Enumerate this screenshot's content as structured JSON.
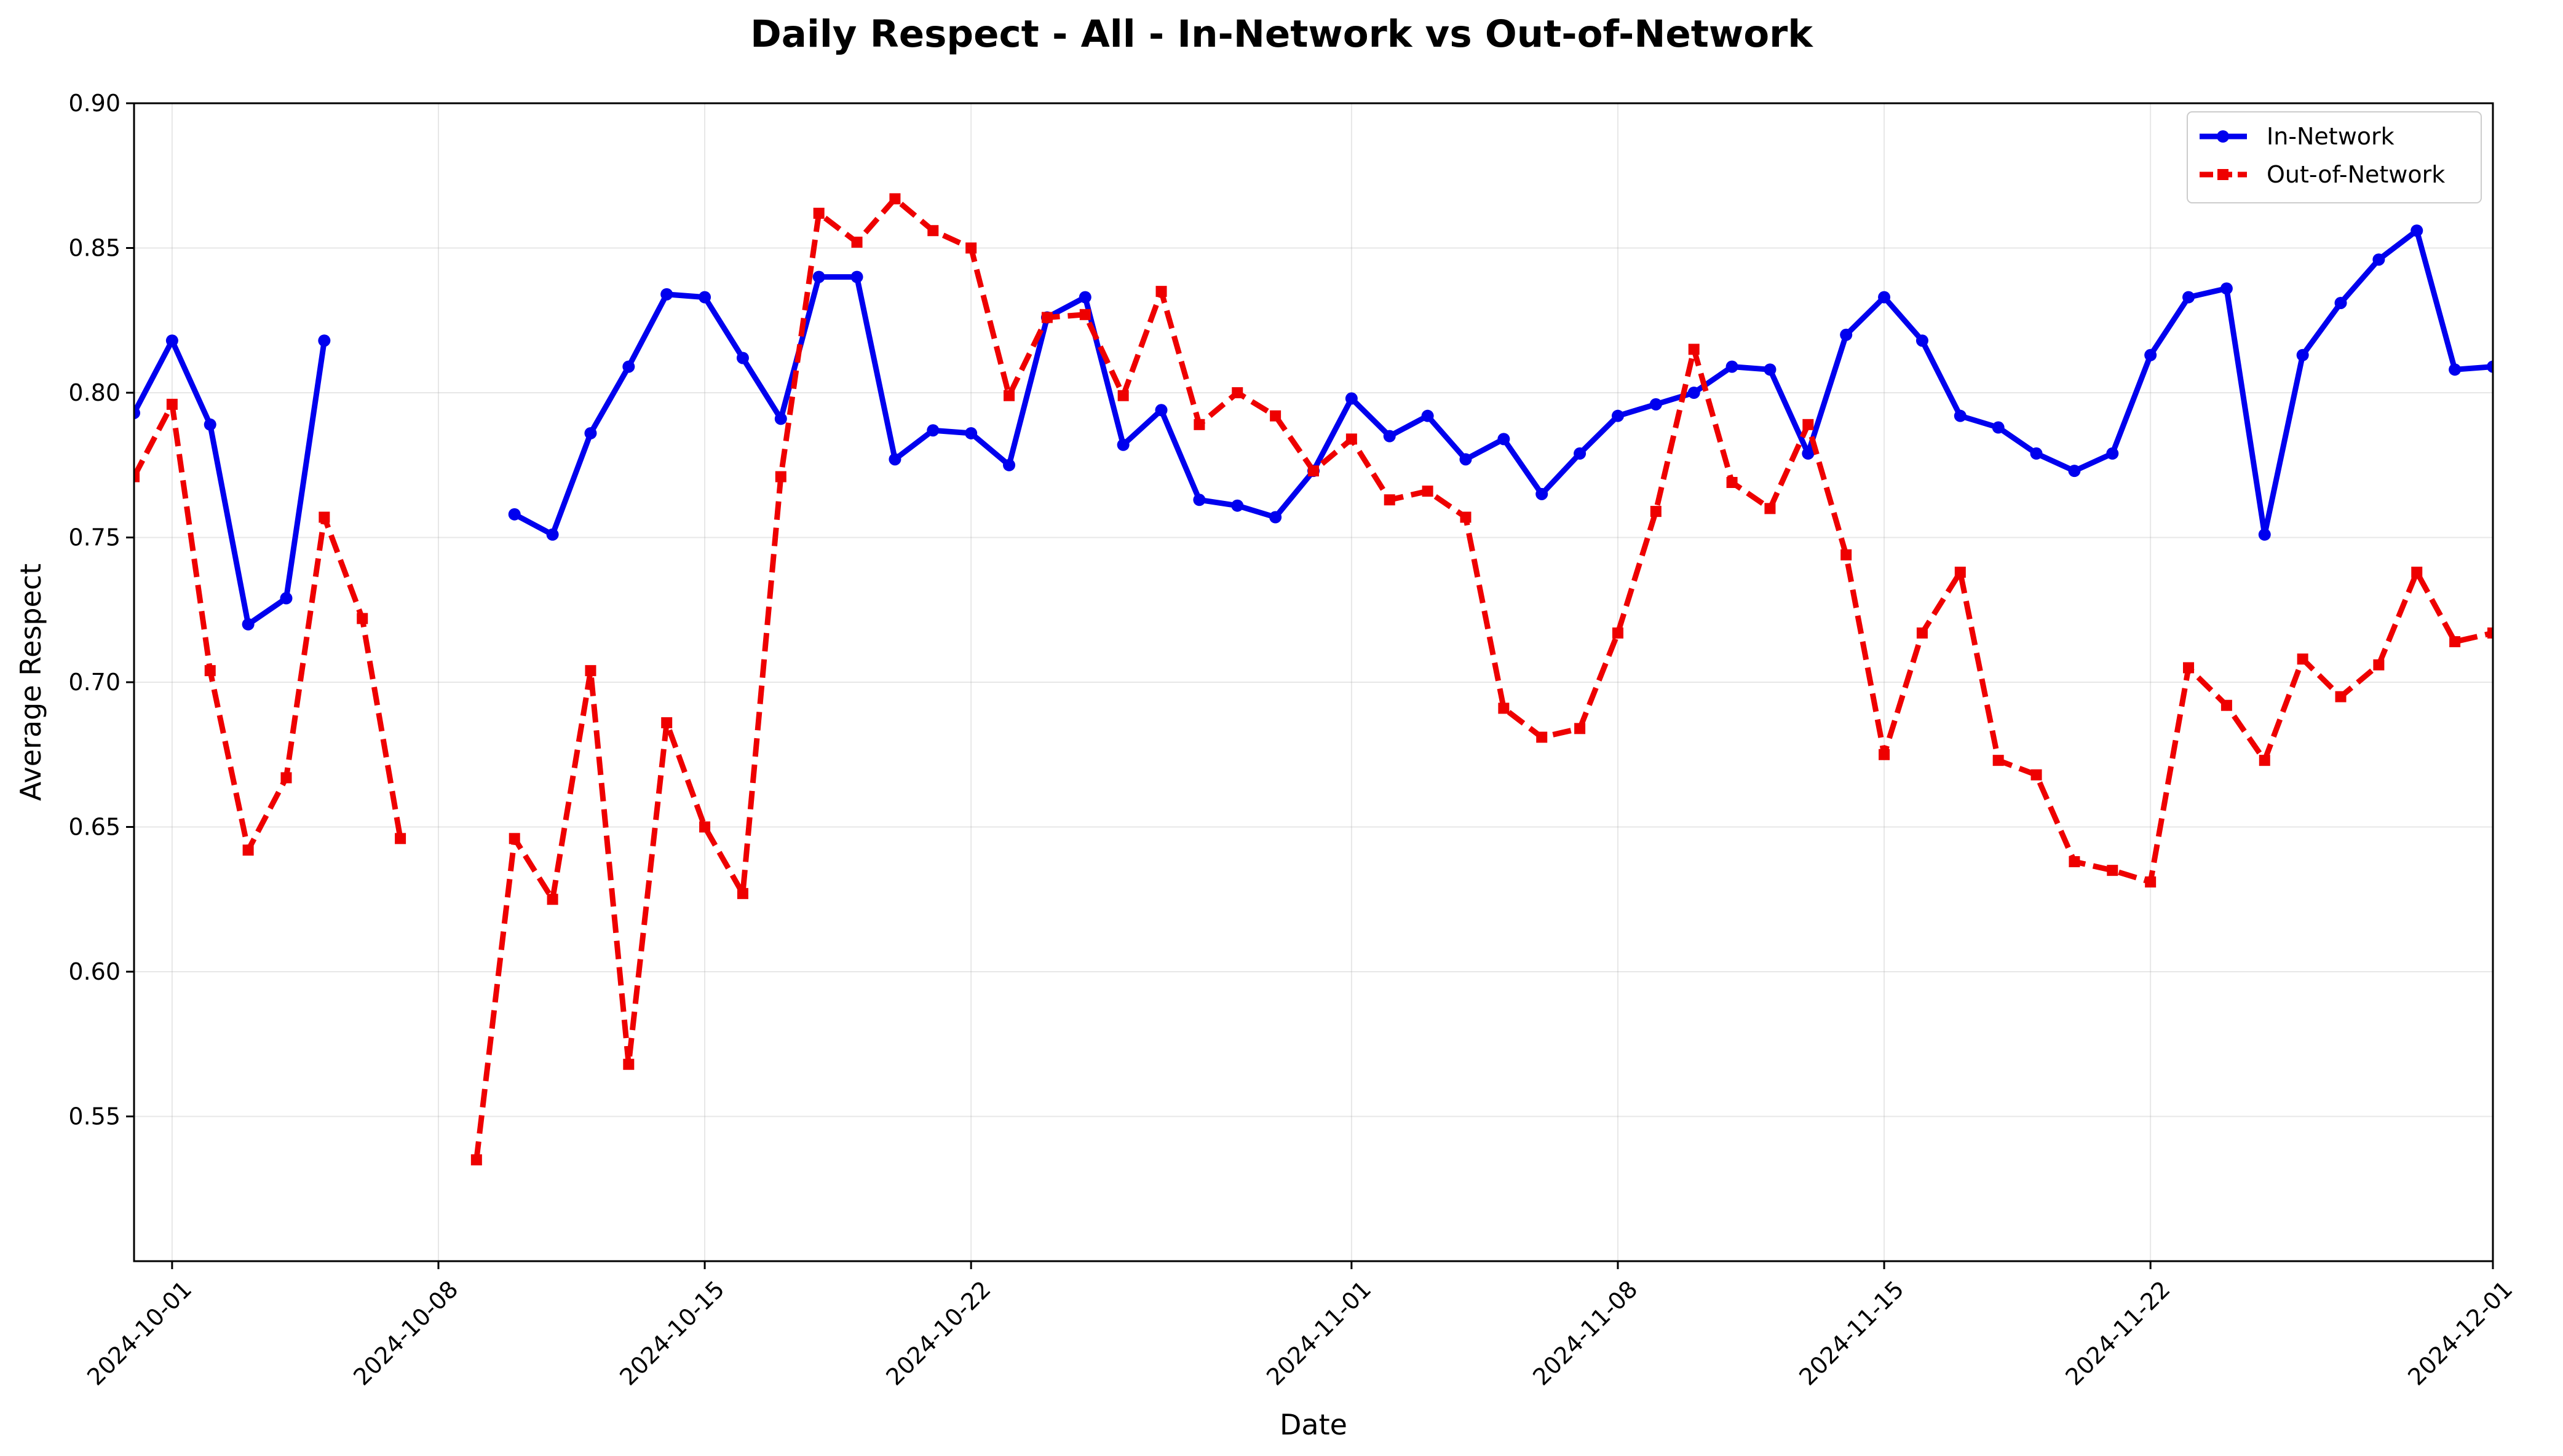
{
  "chart_data": {
    "type": "line",
    "title": "Daily Respect - All - In-Network vs Out-of-Network",
    "xlabel": "Date",
    "ylabel": "Average Respect",
    "x_axis_type": "date",
    "xlim": [
      "2024-09-30",
      "2024-12-01"
    ],
    "ylim": [
      0.5,
      0.9
    ],
    "y_ticks": [
      "0.55",
      "0.60",
      "0.65",
      "0.70",
      "0.75",
      "0.80",
      "0.85",
      "0.90"
    ],
    "x_ticks": [
      "2024-10-01",
      "2024-10-08",
      "2024-10-15",
      "2024-10-22",
      "2024-11-01",
      "2024-11-08",
      "2024-11-15",
      "2024-11-22",
      "2024-12-01"
    ],
    "grid": true,
    "legend_position": "top-right",
    "x": [
      "2024-09-30",
      "2024-10-01",
      "2024-10-02",
      "2024-10-03",
      "2024-10-04",
      "2024-10-05",
      "2024-10-06",
      "2024-10-07",
      "2024-10-08",
      "2024-10-09",
      "2024-10-10",
      "2024-10-11",
      "2024-10-12",
      "2024-10-13",
      "2024-10-14",
      "2024-10-15",
      "2024-10-16",
      "2024-10-17",
      "2024-10-18",
      "2024-10-19",
      "2024-10-20",
      "2024-10-21",
      "2024-10-22",
      "2024-10-23",
      "2024-10-24",
      "2024-10-25",
      "2024-10-26",
      "2024-10-27",
      "2024-10-28",
      "2024-10-29",
      "2024-10-30",
      "2024-10-31",
      "2024-11-01",
      "2024-11-02",
      "2024-11-03",
      "2024-11-04",
      "2024-11-05",
      "2024-11-06",
      "2024-11-07",
      "2024-11-08",
      "2024-11-09",
      "2024-11-10",
      "2024-11-11",
      "2024-11-12",
      "2024-11-13",
      "2024-11-14",
      "2024-11-15",
      "2024-11-16",
      "2024-11-17",
      "2024-11-18",
      "2024-11-19",
      "2024-11-20",
      "2024-11-21",
      "2024-11-22",
      "2024-11-23",
      "2024-11-24",
      "2024-11-25",
      "2024-11-26",
      "2024-11-27",
      "2024-11-28",
      "2024-11-29",
      "2024-11-30",
      "2024-12-01"
    ],
    "series": [
      {
        "name": "In-Network",
        "color": "#0000ee",
        "line_style": "solid",
        "marker": "circle",
        "values": [
          0.793,
          0.818,
          0.789,
          0.72,
          0.729,
          0.818,
          null,
          null,
          null,
          null,
          0.758,
          0.751,
          0.786,
          0.809,
          0.834,
          0.833,
          0.812,
          0.791,
          0.84,
          0.84,
          0.777,
          0.787,
          0.786,
          0.775,
          0.826,
          0.833,
          0.782,
          0.794,
          0.763,
          0.761,
          0.757,
          0.773,
          0.798,
          0.785,
          0.792,
          0.777,
          0.784,
          0.765,
          0.779,
          0.792,
          0.796,
          0.8,
          0.809,
          0.808,
          0.779,
          0.82,
          0.833,
          0.818,
          0.792,
          0.788,
          0.779,
          0.773,
          0.779,
          0.813,
          0.833,
          0.836,
          0.751,
          0.813,
          0.831,
          0.846,
          0.856,
          0.808,
          0.809
        ]
      },
      {
        "name": "Out-of-Network",
        "color": "#ee0000",
        "line_style": "dashed",
        "marker": "square",
        "values": [
          0.771,
          0.796,
          0.704,
          0.642,
          0.667,
          0.757,
          0.722,
          0.646,
          null,
          0.535,
          0.646,
          0.625,
          0.704,
          0.568,
          0.686,
          0.65,
          0.627,
          0.771,
          0.862,
          0.852,
          0.867,
          0.856,
          0.85,
          0.799,
          0.826,
          0.827,
          0.799,
          0.835,
          0.789,
          0.8,
          0.792,
          0.773,
          0.784,
          0.763,
          0.766,
          0.757,
          0.691,
          0.681,
          0.684,
          0.717,
          0.759,
          0.815,
          0.769,
          0.76,
          0.789,
          0.744,
          0.675,
          0.717,
          0.738,
          0.673,
          0.668,
          0.638,
          0.635,
          0.631,
          0.705,
          0.692,
          0.673,
          0.708,
          0.695,
          0.706,
          0.738,
          0.714,
          0.717
        ]
      }
    ]
  }
}
